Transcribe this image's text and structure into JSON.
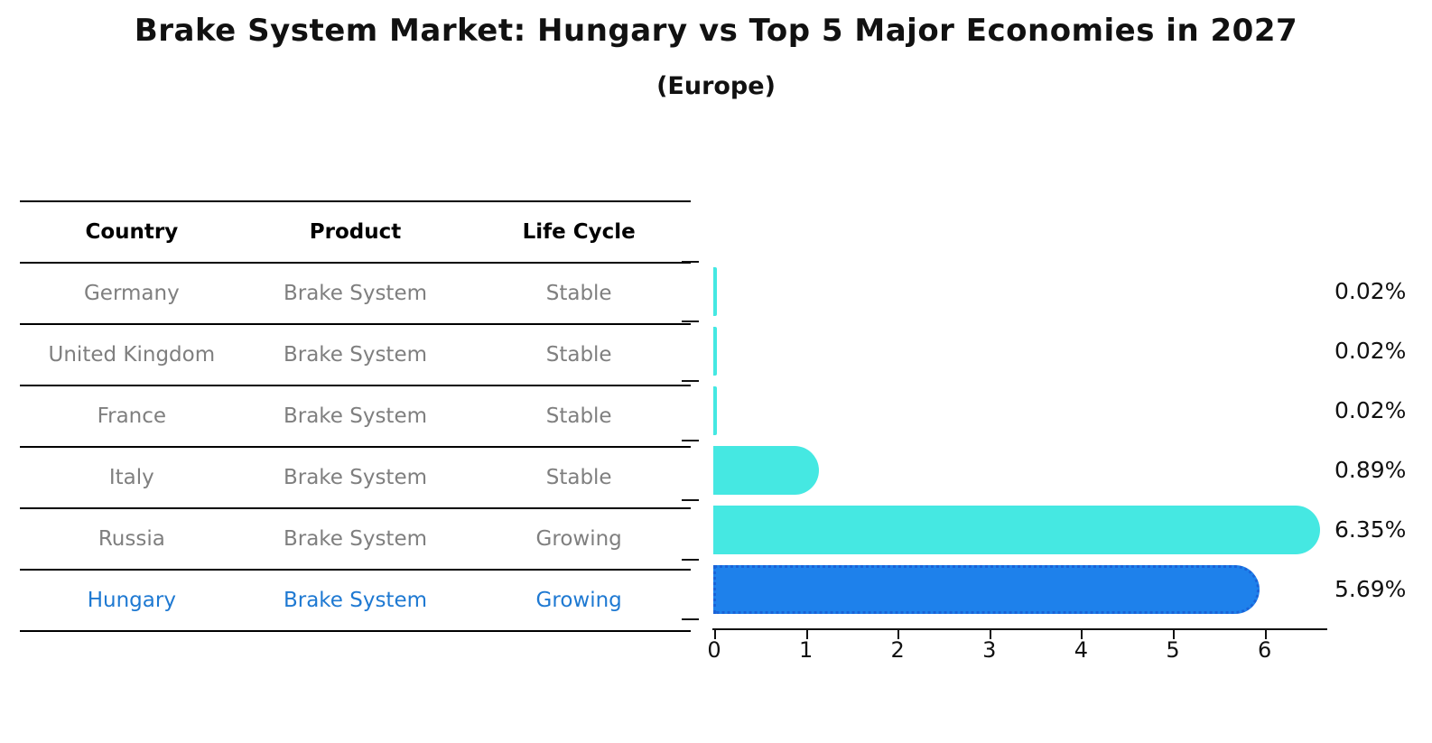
{
  "chart_data": {
    "type": "bar",
    "orientation": "horizontal",
    "title": "Brake System Market: Hungary vs Top 5 Major Economies in 2027",
    "subtitle": "(Europe)",
    "categories": [
      "Germany",
      "United Kingdom",
      "France",
      "Italy",
      "Russia",
      "Hungary"
    ],
    "values": [
      0.02,
      0.02,
      0.02,
      0.89,
      6.35,
      5.69
    ],
    "value_labels": [
      "0.02%",
      "0.02%",
      "0.02%",
      "0.89%",
      "6.35%",
      "5.69%"
    ],
    "xticks": [
      "0",
      "1",
      "2",
      "3",
      "4",
      "5",
      "6"
    ],
    "xlim": [
      0,
      6.7
    ],
    "grid": false,
    "legend": null,
    "highlight_index": 5,
    "colors": {
      "bar": "#45E8E2",
      "highlight_bar": "#1E81EB",
      "highlight_bar_border": "#1A63D8",
      "table_text": "#7F7F7F",
      "highlight_text": "#1E79D2",
      "axis": "#111111"
    }
  },
  "table": {
    "headers": [
      "Country",
      "Product",
      "Life Cycle"
    ],
    "rows": [
      {
        "country": "Germany",
        "product": "Brake System",
        "life_cycle": "Stable",
        "highlight": false
      },
      {
        "country": "United Kingdom",
        "product": "Brake System",
        "life_cycle": "Stable",
        "highlight": false
      },
      {
        "country": "France",
        "product": "Brake System",
        "life_cycle": "Stable",
        "highlight": false
      },
      {
        "country": "Italy",
        "product": "Brake System",
        "life_cycle": "Stable",
        "highlight": false
      },
      {
        "country": "Russia",
        "product": "Brake System",
        "life_cycle": "Growing",
        "highlight": false
      },
      {
        "country": "Hungary",
        "product": "Brake System",
        "life_cycle": "Growing",
        "highlight": true
      }
    ]
  }
}
